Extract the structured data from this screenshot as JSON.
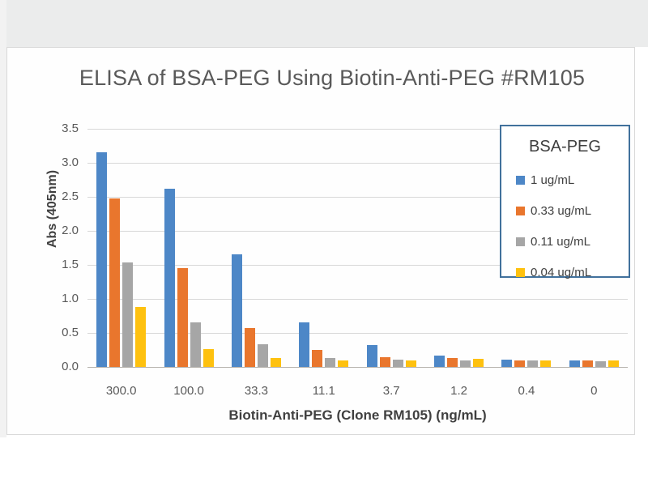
{
  "page": {
    "background_color": "#ffffff",
    "top_band_color": "#ebecec",
    "panel_border_color": "#d9d9d9"
  },
  "chart_data": {
    "type": "bar",
    "title": "ELISA of BSA-PEG Using Biotin-Anti-PEG #RM105",
    "xlabel": "Biotin-Anti-PEG (Clone RM105) (ng/mL)",
    "ylabel": "Abs (405nm)",
    "ylim": [
      0,
      3.5
    ],
    "ytick_step": 0.5,
    "ytick_labels": [
      "0.0",
      "0.5",
      "1.0",
      "1.5",
      "2.0",
      "2.5",
      "3.0",
      "3.5"
    ],
    "grid": true,
    "gridline_color": "#d8d8d8",
    "baseline_color": "#b7b3ae",
    "categories": [
      "300.0",
      "100.0",
      "33.3",
      "11.1",
      "3.7",
      "1.2",
      "0.4",
      "0"
    ],
    "series": [
      {
        "name": "1 ug/mL",
        "color": "#4d87c7",
        "values": [
          3.15,
          2.62,
          1.65,
          0.66,
          0.32,
          0.17,
          0.11,
          0.1
        ]
      },
      {
        "name": "0.33 ug/mL",
        "color": "#e9762d",
        "values": [
          2.48,
          1.45,
          0.57,
          0.25,
          0.14,
          0.13,
          0.1,
          0.09
        ]
      },
      {
        "name": "0.11 ug/mL",
        "color": "#a6a6a6",
        "values": [
          1.53,
          0.65,
          0.33,
          0.13,
          0.11,
          0.09,
          0.09,
          0.08
        ]
      },
      {
        "name": "0.04 ug/mL",
        "color": "#fec10f",
        "values": [
          0.88,
          0.26,
          0.13,
          0.1,
          0.09,
          0.12,
          0.09,
          0.1
        ]
      }
    ],
    "legend": {
      "title": "BSA-PEG",
      "position": "top-right",
      "border_color": "#41719c",
      "entries": [
        "1 ug/mL",
        "0.33 ug/mL",
        "0.11 ug/mL",
        "0.04 ug/mL"
      ]
    }
  }
}
